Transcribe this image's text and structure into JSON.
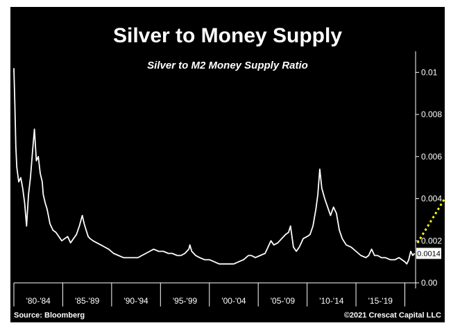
{
  "chart_data": {
    "type": "line",
    "title": "Silver to Money Supply",
    "subtitle": "Silver to M2 Money Supply Ratio",
    "x_range": [
      1980.0,
      2021.1
    ],
    "ylim": [
      0,
      0.011
    ],
    "y_ticks": [
      {
        "value": 0.0,
        "label": "0.00"
      },
      {
        "value": 0.002,
        "label": "0.002"
      },
      {
        "value": 0.004,
        "label": "0.004"
      },
      {
        "value": 0.006,
        "label": "0.006"
      },
      {
        "value": 0.008,
        "label": "0.008"
      },
      {
        "value": 0.01,
        "label": "0.01"
      }
    ],
    "x_categories": [
      "'80-'84",
      "'85-'89",
      "'90-'94",
      "'95-'99",
      "'00-'04",
      "'05-'09",
      "'10-'14",
      "'15-'19"
    ],
    "x_category_ranges": [
      [
        1980,
        1985
      ],
      [
        1985,
        1990
      ],
      [
        1990,
        1995
      ],
      [
        1995,
        2000
      ],
      [
        2000,
        2005
      ],
      [
        2005,
        2010
      ],
      [
        2010,
        2015
      ],
      [
        2015,
        2020
      ]
    ],
    "last_value_label": "0.0014",
    "last_value": 0.0014,
    "series": [
      {
        "color": "#ffffff",
        "x": [
          1980.0,
          1980.1,
          1980.2,
          1980.3,
          1980.5,
          1980.7,
          1980.9,
          1981.1,
          1981.3,
          1981.5,
          1981.7,
          1981.9,
          1982.1,
          1982.3,
          1982.5,
          1982.7,
          1982.9,
          1983.0,
          1983.2,
          1983.4,
          1983.7,
          1984.0,
          1984.3,
          1984.6,
          1984.9,
          1985.2,
          1985.5,
          1985.8,
          1986.1,
          1986.4,
          1986.7,
          1987.0,
          1987.2,
          1987.4,
          1987.6,
          1987.8,
          1988.1,
          1988.5,
          1988.9,
          1989.3,
          1989.7,
          1990.2,
          1990.7,
          1991.2,
          1991.7,
          1992.2,
          1992.7,
          1993.1,
          1993.5,
          1993.9,
          1994.3,
          1994.8,
          1995.3,
          1995.8,
          1996.2,
          1996.7,
          1997.1,
          1997.5,
          1997.9,
          1998.0,
          1998.2,
          1998.6,
          1999.0,
          1999.5,
          2000.0,
          2000.5,
          2001.0,
          2001.5,
          2002.0,
          2002.5,
          2003.0,
          2003.5,
          2004.0,
          2004.3,
          2004.7,
          2005.2,
          2005.7,
          2006.0,
          2006.3,
          2006.6,
          2007.0,
          2007.4,
          2007.8,
          2008.1,
          2008.3,
          2008.6,
          2008.9,
          2009.2,
          2009.6,
          2010.0,
          2010.3,
          2010.6,
          2010.9,
          2011.1,
          2011.3,
          2011.5,
          2011.8,
          2012.1,
          2012.4,
          2012.7,
          2013.0,
          2013.3,
          2013.6,
          2014.0,
          2014.5,
          2015.0,
          2015.5,
          2016.0,
          2016.3,
          2016.6,
          2016.9,
          2017.2,
          2017.6,
          2018.0,
          2018.5,
          2019.0,
          2019.4,
          2019.7,
          2020.0,
          2020.2,
          2020.4,
          2020.6,
          2020.8,
          2021.0
        ],
        "y": [
          0.0102,
          0.0085,
          0.0065,
          0.0055,
          0.0048,
          0.005,
          0.0045,
          0.0038,
          0.0027,
          0.0042,
          0.005,
          0.0062,
          0.0073,
          0.0058,
          0.006,
          0.0052,
          0.0048,
          0.0042,
          0.0038,
          0.0035,
          0.0028,
          0.0025,
          0.0024,
          0.0022,
          0.002,
          0.0021,
          0.0022,
          0.0019,
          0.0021,
          0.0023,
          0.0027,
          0.0032,
          0.0028,
          0.0025,
          0.0022,
          0.0021,
          0.002,
          0.0019,
          0.0018,
          0.0017,
          0.0016,
          0.0014,
          0.0013,
          0.0012,
          0.0012,
          0.0012,
          0.0012,
          0.0013,
          0.0014,
          0.0015,
          0.0016,
          0.0015,
          0.0015,
          0.0014,
          0.0014,
          0.0013,
          0.0013,
          0.0014,
          0.0016,
          0.0018,
          0.0015,
          0.0013,
          0.0012,
          0.0011,
          0.0011,
          0.001,
          0.0009,
          0.0009,
          0.0009,
          0.0009,
          0.001,
          0.0011,
          0.0013,
          0.0013,
          0.0012,
          0.0013,
          0.0014,
          0.0017,
          0.002,
          0.0018,
          0.0019,
          0.0021,
          0.0023,
          0.0024,
          0.0027,
          0.0017,
          0.0015,
          0.0017,
          0.0021,
          0.0022,
          0.0023,
          0.0027,
          0.0035,
          0.0042,
          0.0054,
          0.0045,
          0.004,
          0.0036,
          0.0032,
          0.0036,
          0.0033,
          0.0025,
          0.0021,
          0.0018,
          0.0017,
          0.0015,
          0.0013,
          0.0012,
          0.0013,
          0.0016,
          0.0013,
          0.0013,
          0.0012,
          0.0012,
          0.0011,
          0.0011,
          0.0012,
          0.0011,
          0.001,
          0.0009,
          0.0011,
          0.0015,
          0.0013,
          0.0014
        ]
      }
    ],
    "annotations": [
      {
        "type": "arrow",
        "style": "dotted",
        "color": "#ffff00",
        "from": [
          2021.3,
          0.0019
        ],
        "to": [
          2025.0,
          0.0047
        ]
      }
    ],
    "source": "Source: Bloomberg",
    "copyright": "©2021 Crescat Capital LLC",
    "grid": false,
    "legend": "none"
  }
}
